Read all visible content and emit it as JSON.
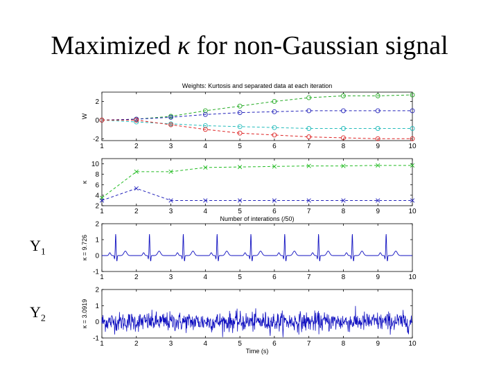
{
  "slide": {
    "title_prefix": "Maximized ",
    "title_symbol": "κ",
    "title_suffix": " for non-Gaussian signal",
    "labels": [
      {
        "base": "Y",
        "sub": "1"
      },
      {
        "base": "Y",
        "sub": "2"
      }
    ]
  },
  "chart_data": [
    {
      "type": "line",
      "title": "Weights: Kurtosis and separated data at each iteration",
      "ylabel": "W",
      "xlabel": "",
      "x": [
        1,
        2,
        3,
        4,
        5,
        6,
        7,
        8,
        9,
        10
      ],
      "xlim": [
        1,
        10
      ],
      "ylim": [
        -2.2,
        3
      ],
      "yticks": [
        -2,
        0,
        2
      ],
      "xticks": [
        1,
        2,
        3,
        4,
        5,
        6,
        7,
        8,
        9,
        10
      ],
      "series": [
        {
          "color": "#22aa22",
          "marker": "o",
          "values": [
            0,
            0.1,
            0.4,
            1.0,
            1.5,
            2.0,
            2.4,
            2.6,
            2.6,
            2.7
          ]
        },
        {
          "color": "#2222bb",
          "marker": "o",
          "values": [
            0,
            0.1,
            0.3,
            0.6,
            0.8,
            0.9,
            1.0,
            1.0,
            1.0,
            1.0
          ]
        },
        {
          "color": "#22bbbb",
          "marker": "o",
          "values": [
            0,
            -0.2,
            -0.4,
            -0.6,
            -0.7,
            -0.8,
            -0.9,
            -0.9,
            -0.9,
            -0.9
          ]
        },
        {
          "color": "#dd2222",
          "marker": "o",
          "values": [
            0,
            0,
            -0.5,
            -1.0,
            -1.4,
            -1.6,
            -1.8,
            -1.9,
            -2.0,
            -2.0
          ]
        }
      ]
    },
    {
      "type": "line",
      "ylabel": "κ",
      "xlabel": "Number of interations (/50)",
      "x": [
        1,
        2,
        3,
        4,
        5,
        6,
        7,
        8,
        9,
        10
      ],
      "xlim": [
        1,
        10
      ],
      "ylim": [
        2,
        11
      ],
      "yticks": [
        2,
        4,
        6,
        8,
        10
      ],
      "xticks": [
        1,
        2,
        3,
        4,
        5,
        6,
        7,
        8,
        9,
        10
      ],
      "series": [
        {
          "color": "#22bb22",
          "marker": "x",
          "values": [
            3.5,
            8.5,
            8.5,
            9.3,
            9.4,
            9.5,
            9.6,
            9.6,
            9.7,
            9.7
          ]
        },
        {
          "color": "#2222bb",
          "marker": "x",
          "values": [
            3.0,
            5.3,
            3.0,
            3.0,
            3.0,
            3.0,
            3.0,
            3.0,
            3.0,
            3.0
          ]
        }
      ]
    },
    {
      "type": "line",
      "ylabel": "κ = 9.726",
      "xlabel": "",
      "signal": "ecg",
      "beat_times": [
        1.4,
        2.38,
        3.36,
        4.34,
        5.32,
        6.3,
        7.28,
        8.26,
        9.24
      ],
      "peak_amplitude": 1.35,
      "xlim": [
        1,
        10
      ],
      "ylim": [
        -1,
        2
      ],
      "yticks": [
        -1,
        0,
        1,
        2
      ],
      "xticks": [
        1,
        2,
        3,
        4,
        5,
        6,
        7,
        8,
        9,
        10
      ],
      "series": [
        {
          "color": "#1010c0"
        }
      ]
    },
    {
      "type": "line",
      "ylabel": "κ = 3.0919",
      "xlabel": "Time (s)",
      "signal": "gaussian-noise",
      "noise_std": 0.3,
      "xlim": [
        1,
        10
      ],
      "ylim": [
        -1,
        2
      ],
      "yticks": [
        -1,
        0,
        1,
        2
      ],
      "xticks": [
        1,
        2,
        3,
        4,
        5,
        6,
        7,
        8,
        9,
        10
      ],
      "series": [
        {
          "color": "#1010c0"
        }
      ]
    }
  ]
}
